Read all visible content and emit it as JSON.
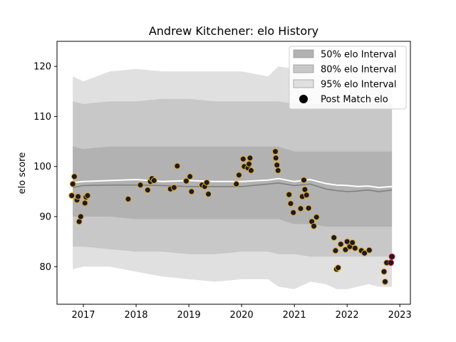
{
  "chart_data": {
    "type": "scatter",
    "title": "Andrew Kitchener: elo History",
    "xlabel": "",
    "ylabel": "elo score",
    "xlim": [
      2016.5,
      2023.2
    ],
    "ylim": [
      72.5,
      125
    ],
    "xticks": [
      2017,
      2018,
      2019,
      2020,
      2021,
      2022,
      2023
    ],
    "xtick_labels": [
      "2017",
      "2018",
      "2019",
      "2020",
      "2021",
      "2022",
      "2023"
    ],
    "yticks": [
      80,
      90,
      100,
      110,
      120
    ],
    "ytick_labels": [
      "80",
      "90",
      "100",
      "110",
      "120"
    ],
    "grid": false,
    "legend_position": "top-right",
    "legend": [
      {
        "label": "50% elo Interval",
        "kind": "patch",
        "color": "#b2b2b2"
      },
      {
        "label": "80% elo Interval",
        "kind": "patch",
        "color": "#c8c8c8"
      },
      {
        "label": "95% elo Interval",
        "kind": "patch",
        "color": "#e0e0e0"
      },
      {
        "label": "Post Match elo",
        "kind": "marker",
        "color": "#000000"
      }
    ],
    "colors": {
      "band95": "#e0e0e0",
      "band80": "#c8c8c8",
      "band50": "#b2b2b2",
      "mean_line": "#ffffff",
      "median_line": "#808080",
      "point_fill": "#1b1b2b",
      "point_edge": "#e6a817",
      "last_point_edge": "#d62728"
    },
    "bands": {
      "x": [
        2016.8,
        2017.0,
        2017.5,
        2018.0,
        2018.5,
        2019.0,
        2019.5,
        2020.0,
        2020.5,
        2020.7,
        2021.0,
        2021.3,
        2021.6,
        2021.8,
        2022.0,
        2022.2,
        2022.4,
        2022.6,
        2022.85
      ],
      "upper95": [
        118,
        117,
        119,
        119.5,
        119,
        119,
        119,
        119,
        118,
        120,
        119.5,
        118.5,
        118,
        118,
        118,
        118.5,
        117.5,
        117.5,
        117
      ],
      "lower95": [
        79.5,
        80,
        80,
        79,
        78,
        77.5,
        77,
        77.5,
        77.5,
        76,
        75.5,
        77,
        76.5,
        75.5,
        75.5,
        76,
        76.5,
        76,
        76
      ],
      "upper80": [
        113,
        112.5,
        113,
        113,
        113.5,
        113.5,
        113,
        113,
        113,
        113,
        112.5,
        112.5,
        112.5,
        112.5,
        112.5,
        112.5,
        112.5,
        112.5,
        112.5
      ],
      "lower80": [
        84,
        84,
        83.5,
        83,
        83,
        82.5,
        82.5,
        83,
        83,
        82.5,
        82.5,
        82,
        82,
        82,
        82,
        82,
        82,
        82,
        82
      ],
      "upper50": [
        104,
        103.5,
        104,
        104,
        104,
        104,
        104,
        104,
        104,
        104,
        103,
        103,
        103,
        103,
        103,
        103,
        103,
        103,
        103
      ],
      "lower50": [
        90,
        90,
        90,
        89.5,
        89.5,
        89.5,
        89.5,
        89.5,
        89.5,
        89.5,
        88.5,
        88.5,
        88,
        88,
        88,
        88,
        88,
        88,
        88
      ]
    },
    "series": [
      {
        "kind": "mean_line",
        "x": [
          2016.8,
          2017.0,
          2017.5,
          2018.0,
          2018.5,
          2019.0,
          2019.5,
          2020.0,
          2020.5,
          2020.7,
          2021.0,
          2021.3,
          2021.6,
          2021.8,
          2022.0,
          2022.2,
          2022.4,
          2022.6,
          2022.85
        ],
        "y": [
          96.8,
          97.0,
          97.2,
          97.4,
          97.0,
          97.2,
          97.0,
          97.0,
          97.3,
          97.6,
          97.0,
          97.4,
          96.6,
          96.3,
          96.2,
          96.0,
          96.1,
          95.8,
          96.0
        ]
      },
      {
        "kind": "median_line",
        "x": [
          2016.8,
          2017.0,
          2017.5,
          2018.0,
          2018.5,
          2019.0,
          2019.5,
          2020.0,
          2020.5,
          2020.7,
          2021.0,
          2021.3,
          2021.6,
          2021.8,
          2022.0,
          2022.2,
          2022.4,
          2022.6,
          2022.85
        ],
        "y": [
          95.8,
          96.2,
          96.3,
          96.3,
          96.2,
          96.0,
          96.0,
          96.0,
          96.5,
          96.7,
          96.2,
          96.5,
          95.5,
          95.2,
          95.0,
          95.1,
          95.3,
          95.0,
          95.3
        ]
      },
      {
        "kind": "points",
        "name": "Post Match elo",
        "x": [
          2016.78,
          2016.8,
          2016.83,
          2016.88,
          2016.9,
          2016.92,
          2016.95,
          2017.03,
          2017.05,
          2017.08,
          2017.85,
          2018.08,
          2018.22,
          2018.27,
          2018.3,
          2018.34,
          2018.65,
          2018.72,
          2018.78,
          2018.95,
          2019.02,
          2019.05,
          2019.25,
          2019.3,
          2019.34,
          2019.37,
          2019.9,
          2019.95,
          2020.03,
          2020.05,
          2020.12,
          2020.14,
          2020.16,
          2020.18,
          2020.64,
          2020.65,
          2020.67,
          2020.69,
          2020.9,
          2020.93,
          2020.98,
          2021.12,
          2021.15,
          2021.18,
          2021.2,
          2021.23,
          2021.27,
          2021.33,
          2021.37,
          2021.42,
          2021.75,
          2021.78,
          2021.8,
          2021.83,
          2021.88,
          2021.97,
          2022.0,
          2022.05,
          2022.1,
          2022.15,
          2022.27,
          2022.33,
          2022.42,
          2022.7,
          2022.72,
          2022.75,
          2022.83,
          2022.85
        ],
        "y": [
          94.2,
          96.5,
          98.0,
          93.3,
          94.0,
          89.0,
          90.0,
          92.7,
          93.9,
          94.2,
          93.5,
          96.3,
          95.3,
          97.0,
          97.6,
          97.2,
          95.5,
          95.8,
          100.1,
          97.1,
          98.0,
          95.0,
          96.3,
          96.0,
          96.8,
          94.5,
          96.5,
          98.3,
          101.5,
          100.0,
          99.7,
          100.5,
          101.7,
          99.2,
          103.0,
          101.7,
          100.3,
          99.2,
          94.4,
          92.6,
          90.8,
          91.6,
          94.0,
          97.3,
          95.4,
          94.3,
          91.7,
          89.0,
          88.1,
          89.9,
          85.8,
          83.2,
          79.5,
          79.8,
          84.5,
          83.4,
          85.0,
          84.0,
          84.8,
          83.7,
          83.2,
          82.7,
          83.3,
          79.0,
          77.0,
          80.8,
          80.8,
          82.0
        ]
      }
    ]
  }
}
